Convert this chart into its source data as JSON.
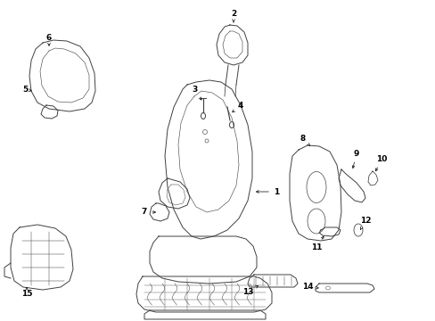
{
  "bg_color": "#ffffff",
  "line_color": "#404040",
  "label_color": "#000000",
  "figsize": [
    4.89,
    3.6
  ],
  "dpi": 100,
  "lw": 0.7,
  "label_fs": 6.5
}
